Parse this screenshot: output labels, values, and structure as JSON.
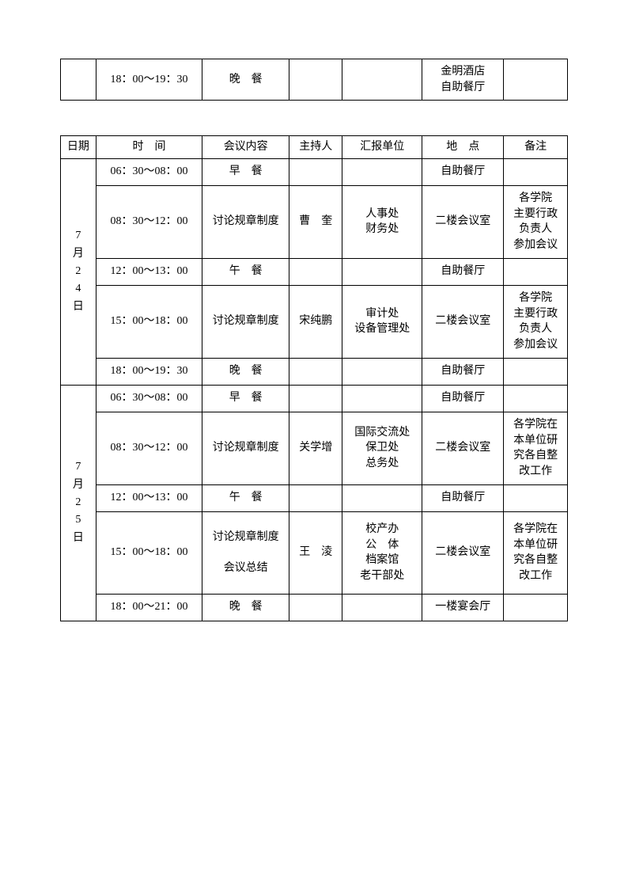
{
  "table1": {
    "rows": [
      {
        "date": "",
        "time": "18：00～19：30",
        "content": "晚　餐",
        "host": "",
        "unit": "",
        "place": "金明酒店\n自助餐厅",
        "note": ""
      }
    ]
  },
  "table2": {
    "headers": {
      "date": "日期",
      "time": "时　间",
      "content": "会议内容",
      "host": "主持人",
      "unit": "汇报单位",
      "place": "地　点",
      "note": "备注"
    },
    "groups": [
      {
        "date": "7月24日",
        "rows": [
          {
            "time": "06：30～08：00",
            "content": "早　餐",
            "host": "",
            "unit": "",
            "place": "自助餐厅",
            "note": "",
            "height": "h-short"
          },
          {
            "time": "08：30～12：00",
            "content": "讨论规章制度",
            "host": "曹　奎",
            "unit": "人事处\n财务处",
            "place": "二楼会议室",
            "note": "各学院\n主要行政\n负责人\n参加会议",
            "height": "h-tall"
          },
          {
            "time": "12：00～13：00",
            "content": "午　餐",
            "host": "",
            "unit": "",
            "place": "自助餐厅",
            "note": "",
            "height": "h-short"
          },
          {
            "time": "15：00～18：00",
            "content": "讨论规章制度",
            "host": "宋纯鹏",
            "unit": "审计处\n设备管理处",
            "place": "二楼会议室",
            "note": "各学院\n主要行政\n负责人\n参加会议",
            "height": "h-tall"
          },
          {
            "time": "18：00～19：30",
            "content": "晚　餐",
            "host": "",
            "unit": "",
            "place": "自助餐厅",
            "note": "",
            "height": "h-short"
          }
        ]
      },
      {
        "date": "7月25日",
        "rows": [
          {
            "time": "06：30～08：00",
            "content": "早　餐",
            "host": "",
            "unit": "",
            "place": "自助餐厅",
            "note": "",
            "height": "h-short"
          },
          {
            "time": "08：30～12：00",
            "content": "讨论规章制度",
            "host": "关学增",
            "unit": "国际交流处\n保卫处\n总务处",
            "place": "二楼会议室",
            "note": "各学院在\n本单位研\n究各自整\n改工作",
            "height": "h-tall"
          },
          {
            "time": "12：00～13：00",
            "content": "午　餐",
            "host": "",
            "unit": "",
            "place": "自助餐厅",
            "note": "",
            "height": "h-short"
          },
          {
            "time": "15：00～18：00",
            "content": "讨论规章制度\n\n会议总结",
            "host": "王　淩",
            "unit": "校产办\n公　体\n档案馆\n老干部处",
            "place": "二楼会议室",
            "note": "各学院在\n本单位研\n究各自整\n改工作",
            "height": "h-xtall"
          },
          {
            "time": "18：00～21：00",
            "content": "晚　餐",
            "host": "",
            "unit": "",
            "place": "一楼宴会厅",
            "note": "",
            "height": "h-short"
          }
        ]
      }
    ]
  }
}
